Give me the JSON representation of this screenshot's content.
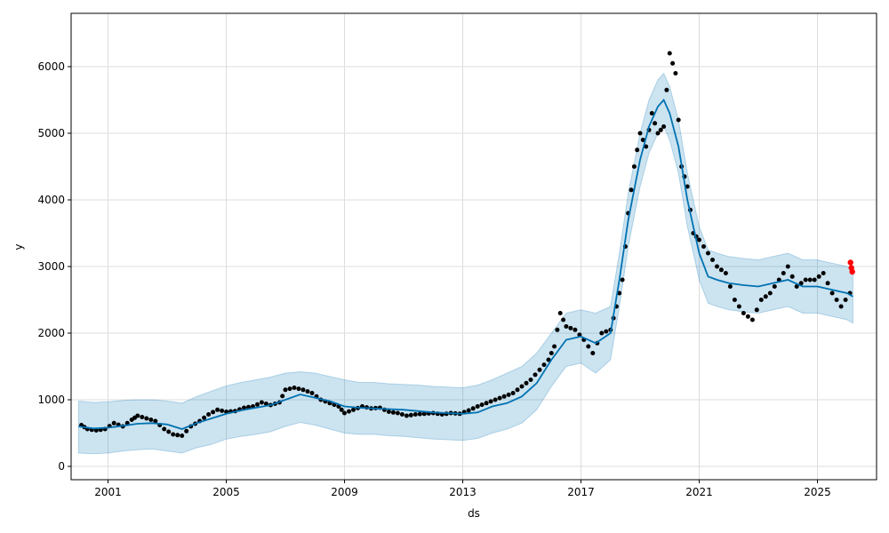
{
  "chart_data": {
    "type": "line",
    "xlabel": "ds",
    "ylabel": "y",
    "xlim": [
      1999.75,
      2027.0
    ],
    "ylim": [
      -200,
      6800
    ],
    "grid": true,
    "x_ticks": [
      2001,
      2005,
      2009,
      2013,
      2017,
      2021,
      2025
    ],
    "x_tick_labels": [
      "2001",
      "2005",
      "2009",
      "2013",
      "2017",
      "2021",
      "2025"
    ],
    "y_ticks": [
      0,
      1000,
      2000,
      3000,
      4000,
      5000,
      6000
    ],
    "y_tick_labels": [
      "0",
      "1000",
      "2000",
      "3000",
      "4000",
      "5000",
      "6000"
    ],
    "colors": {
      "forecast_line": "#0072B2",
      "uncertainty_band": "#0072B2",
      "observed_points": "#000000",
      "highlight_points": "#ff0000"
    },
    "series": [
      {
        "name": "",
        "kind": "observed-points",
        "x": [
          2000.1,
          2000.3,
          2000.6,
          2000.9,
          2001.2,
          2001.5,
          2001.8,
          2002.0,
          2002.3,
          2002.6,
          2002.9,
          2003.2,
          2003.5,
          2003.8,
          2004.1,
          2004.4,
          2004.7,
          2005.0,
          2005.3,
          2005.6,
          2005.9,
          2006.2,
          2006.5,
          2006.8,
          2007.0,
          2007.3,
          2007.6,
          2007.9,
          2008.2,
          2008.5,
          2008.8,
          2009.0,
          2009.3,
          2009.6,
          2009.9,
          2010.2,
          2010.5,
          2010.8,
          2011.1,
          2011.4,
          2011.7,
          2012.0,
          2012.3,
          2012.6,
          2012.9,
          2013.2,
          2013.5,
          2013.8,
          2014.1,
          2014.4,
          2014.7,
          2015.0,
          2015.3,
          2015.6,
          2015.9,
          2016.1,
          2016.3,
          2016.5,
          2016.8,
          2017.1,
          2017.4,
          2017.7,
          2018.0,
          2018.2,
          2018.4,
          2018.6,
          2018.8,
          2019.0,
          2019.2,
          2019.4,
          2019.6,
          2019.8,
          2020.0,
          2020.2,
          2020.4,
          2020.6,
          2020.8,
          2021.0,
          2021.3,
          2021.6,
          2021.9,
          2022.2,
          2022.5,
          2022.8,
          2023.1,
          2023.4,
          2023.7,
          2024.0,
          2024.3,
          2024.6,
          2024.9,
          2025.2,
          2025.5,
          2025.8,
          2026.1
        ],
        "y": [
          620,
          560,
          540,
          560,
          650,
          600,
          700,
          760,
          720,
          680,
          560,
          480,
          460,
          600,
          680,
          780,
          850,
          820,
          830,
          880,
          900,
          960,
          920,
          960,
          1150,
          1180,
          1150,
          1100,
          1000,
          950,
          900,
          800,
          850,
          900,
          870,
          880,
          820,
          800,
          760,
          780,
          790,
          800,
          780,
          800,
          790,
          840,
          900,
          950,
          1000,
          1050,
          1100,
          1200,
          1300,
          1450,
          1600,
          1800,
          2300,
          2100,
          2050,
          1900,
          1700,
          2000,
          2050,
          2400,
          2800,
          3800,
          4500,
          5000,
          4800,
          5300,
          5000,
          5100,
          6200,
          5900,
          4500,
          4200,
          3500,
          3400,
          3200,
          3000,
          2900,
          2500,
          2300,
          2200,
          2500,
          2600,
          2800,
          3000,
          2700,
          2800,
          2800,
          2900,
          2600,
          2400,
          2600
        ],
        "values_in_data_units": true
      },
      {
        "name": "",
        "kind": "forecast-line",
        "x": [
          2000.0,
          2000.5,
          2001.0,
          2001.5,
          2002.0,
          2002.5,
          2003.0,
          2003.5,
          2004.0,
          2004.5,
          2005.0,
          2005.5,
          2006.0,
          2006.5,
          2007.0,
          2007.5,
          2008.0,
          2008.5,
          2009.0,
          2009.5,
          2010.0,
          2010.5,
          2011.0,
          2011.5,
          2012.0,
          2012.5,
          2013.0,
          2013.5,
          2014.0,
          2014.5,
          2015.0,
          2015.5,
          2016.0,
          2016.5,
          2017.0,
          2017.5,
          2018.0,
          2018.3,
          2018.6,
          2019.0,
          2019.3,
          2019.6,
          2019.8,
          2020.0,
          2020.3,
          2020.6,
          2021.0,
          2021.3,
          2021.6,
          2022.0,
          2022.5,
          2023.0,
          2023.5,
          2024.0,
          2024.5,
          2025.0,
          2025.5,
          2026.0,
          2026.2
        ],
        "y": [
          600,
          570,
          580,
          610,
          640,
          650,
          630,
          560,
          650,
          720,
          790,
          840,
          880,
          920,
          1000,
          1080,
          1030,
          980,
          900,
          880,
          870,
          860,
          850,
          830,
          810,
          800,
          790,
          810,
          900,
          950,
          1050,
          1250,
          1600,
          1900,
          1950,
          1850,
          2000,
          2800,
          3700,
          4600,
          5100,
          5400,
          5500,
          5300,
          4800,
          4000,
          3200,
          2850,
          2800,
          2750,
          2720,
          2700,
          2750,
          2800,
          2700,
          2700,
          2650,
          2600,
          2550
        ],
        "values_in_data_units": true
      },
      {
        "name": "",
        "kind": "uncertainty-upper",
        "x": [
          2000.0,
          2000.5,
          2001.0,
          2001.5,
          2002.0,
          2002.5,
          2003.0,
          2003.5,
          2004.0,
          2004.5,
          2005.0,
          2005.5,
          2006.0,
          2006.5,
          2007.0,
          2007.5,
          2008.0,
          2008.5,
          2009.0,
          2009.5,
          2010.0,
          2010.5,
          2011.0,
          2011.5,
          2012.0,
          2012.5,
          2013.0,
          2013.5,
          2014.0,
          2014.5,
          2015.0,
          2015.5,
          2016.0,
          2016.5,
          2017.0,
          2017.5,
          2018.0,
          2018.3,
          2018.6,
          2019.0,
          2019.3,
          2019.6,
          2019.8,
          2020.0,
          2020.3,
          2020.6,
          2021.0,
          2021.3,
          2021.6,
          2022.0,
          2022.5,
          2023.0,
          2023.5,
          2024.0,
          2024.5,
          2025.0,
          2025.5,
          2026.0,
          2026.2
        ],
        "y": [
          980,
          960,
          970,
          990,
          1000,
          1000,
          980,
          950,
          1050,
          1130,
          1210,
          1260,
          1300,
          1340,
          1400,
          1420,
          1400,
          1350,
          1300,
          1260,
          1260,
          1240,
          1230,
          1220,
          1200,
          1190,
          1180,
          1220,
          1300,
          1400,
          1500,
          1700,
          2000,
          2300,
          2350,
          2300,
          2400,
          3200,
          4100,
          5000,
          5500,
          5800,
          5900,
          5700,
          5200,
          4400,
          3600,
          3250,
          3200,
          3150,
          3120,
          3100,
          3150,
          3200,
          3100,
          3100,
          3050,
          3000,
          2950
        ],
        "values_in_data_units": true
      },
      {
        "name": "",
        "kind": "uncertainty-lower",
        "x": [
          2000.0,
          2000.5,
          2001.0,
          2001.5,
          2002.0,
          2002.5,
          2003.0,
          2003.5,
          2004.0,
          2004.5,
          2005.0,
          2005.5,
          2006.0,
          2006.5,
          2007.0,
          2007.5,
          2008.0,
          2008.5,
          2009.0,
          2009.5,
          2010.0,
          2010.5,
          2011.0,
          2011.5,
          2012.0,
          2012.5,
          2013.0,
          2013.5,
          2014.0,
          2014.5,
          2015.0,
          2015.5,
          2016.0,
          2016.5,
          2017.0,
          2017.5,
          2018.0,
          2018.3,
          2018.6,
          2019.0,
          2019.3,
          2019.6,
          2019.8,
          2020.0,
          2020.3,
          2020.6,
          2021.0,
          2021.3,
          2021.6,
          2022.0,
          2022.5,
          2023.0,
          2023.5,
          2024.0,
          2024.5,
          2025.0,
          2025.5,
          2026.0,
          2026.2
        ],
        "y": [
          200,
          190,
          200,
          230,
          250,
          260,
          230,
          200,
          280,
          330,
          410,
          450,
          480,
          520,
          600,
          660,
          620,
          560,
          500,
          480,
          480,
          460,
          450,
          430,
          410,
          400,
          390,
          420,
          500,
          560,
          650,
          850,
          1200,
          1500,
          1550,
          1400,
          1600,
          2400,
          3300,
          4200,
          4700,
          5000,
          5100,
          4900,
          4400,
          3600,
          2800,
          2450,
          2400,
          2350,
          2320,
          2300,
          2350,
          2400,
          2300,
          2300,
          2250,
          2200,
          2150
        ],
        "values_in_data_units": true
      },
      {
        "name": "",
        "kind": "highlight-points",
        "x": [
          2026.12,
          2026.15,
          2026.18
        ],
        "y": [
          3060,
          2980,
          2920
        ],
        "values_in_data_units": true
      }
    ]
  }
}
